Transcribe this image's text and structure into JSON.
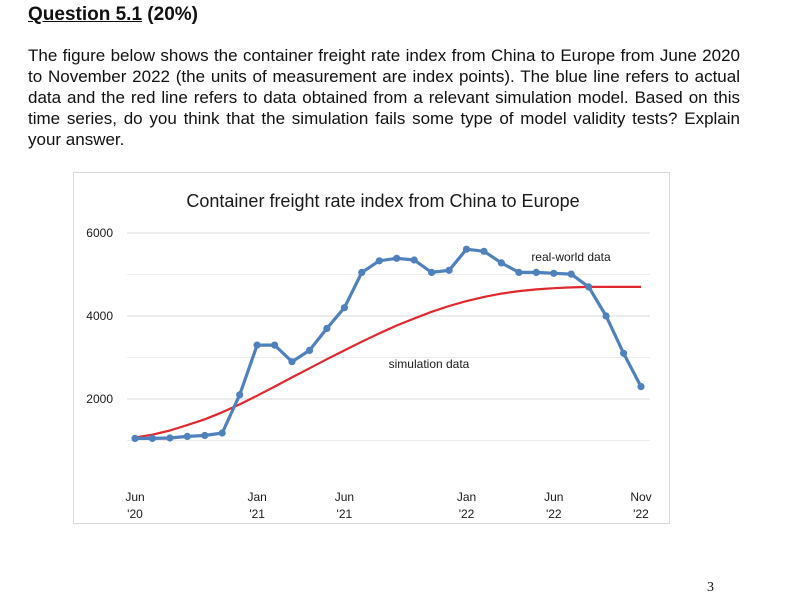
{
  "question": {
    "number": "Question 5.1",
    "weight": " (20%)",
    "text": "The figure below shows the container freight rate index from China to Europe from June 2020 to November 2022 (the units of measurement are index points). The blue line refers to actual data and the red line refers to data obtained from a relevant simulation model. Based on this time series, do you think that the simulation fails some type of model validity tests? Explain your answer."
  },
  "page_number": "3",
  "chart_data": {
    "type": "line",
    "title": "Container freight rate index from China to Europe",
    "xlabel": "",
    "ylabel": "",
    "ylim": [
      1000,
      6500
    ],
    "yticks": [
      2000,
      4000,
      6000
    ],
    "grid": true,
    "colors": {
      "actual": "#4f81bd",
      "simulation": "#e0282e"
    },
    "x_tick_labels": [
      {
        "month": 0,
        "line1": "Jun",
        "line2": "'20"
      },
      {
        "month": 7,
        "line1": "Jan",
        "line2": "'21"
      },
      {
        "month": 12,
        "line1": "Jun",
        "line2": "'21"
      },
      {
        "month": 19,
        "line1": "Jan",
        "line2": "'22"
      },
      {
        "month": 24,
        "line1": "Jun",
        "line2": "'22"
      },
      {
        "month": 29,
        "line1": "Nov",
        "line2": "'22"
      }
    ],
    "series": [
      {
        "name": "real-world data",
        "x": [
          0,
          1,
          2,
          3,
          4,
          5,
          6,
          7,
          8,
          9,
          10,
          11,
          12,
          13,
          14,
          15,
          16,
          17,
          18,
          19,
          20,
          21,
          22,
          23,
          24,
          25,
          26,
          27,
          28,
          29
        ],
        "values": [
          1050,
          1050,
          1060,
          1100,
          1120,
          1180,
          2100,
          3300,
          3300,
          2900,
          3170,
          3700,
          4200,
          5050,
          5330,
          5390,
          5350,
          5050,
          5100,
          5610,
          5560,
          5280,
          5050,
          5050,
          5030,
          5010,
          4700,
          4000,
          3100,
          2300
        ]
      },
      {
        "name": "simulation data",
        "x": [
          0,
          1,
          2,
          3,
          4,
          5,
          6,
          7,
          8,
          9,
          10,
          11,
          12,
          13,
          14,
          15,
          16,
          17,
          18,
          19,
          20,
          21,
          22,
          23,
          24,
          25,
          26,
          27,
          28,
          29
        ],
        "values": [
          1070,
          1140,
          1240,
          1370,
          1510,
          1680,
          1870,
          2080,
          2300,
          2520,
          2740,
          2960,
          3170,
          3380,
          3580,
          3770,
          3940,
          4100,
          4240,
          4360,
          4460,
          4540,
          4600,
          4640,
          4670,
          4690,
          4700,
          4700,
          4700,
          4700
        ]
      }
    ]
  }
}
